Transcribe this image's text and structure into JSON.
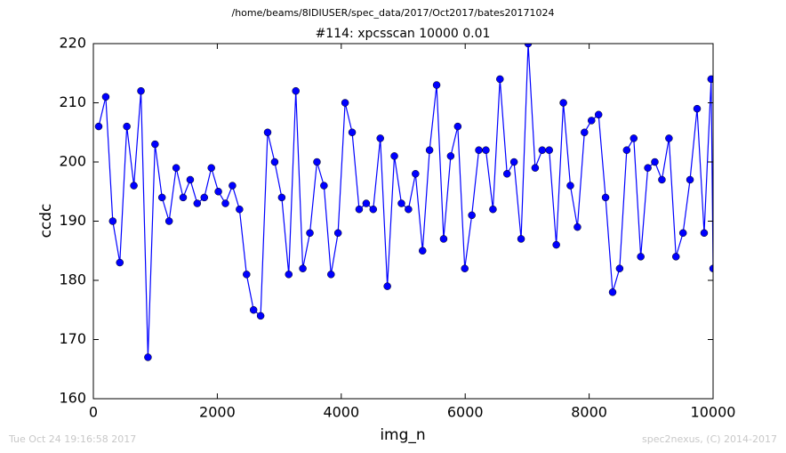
{
  "chart_data": {
    "type": "line",
    "suptitle": "/home/beams/8IDIUSER/spec_data/2017/Oct2017/bates20171024",
    "title": "#114: xpcsscan 10000 0.01",
    "x_label": "img_n",
    "y_label": "ccdc",
    "footer_left": "Tue Oct 24 19:16:58 2017",
    "footer_right": "spec2nexus, (C) 2014-2017",
    "x": [
      86,
      200,
      313,
      427,
      540,
      654,
      768,
      881,
      995,
      1108,
      1222,
      1336,
      1449,
      1563,
      1676,
      1790,
      1904,
      2017,
      2131,
      2244,
      2358,
      2472,
      2585,
      2699,
      2812,
      2926,
      3040,
      3153,
      3267,
      3380,
      3494,
      3608,
      3721,
      3835,
      3948,
      4062,
      4176,
      4289,
      4403,
      4516,
      4630,
      4744,
      4857,
      4971,
      5084,
      5198,
      5312,
      5425,
      5539,
      5652,
      5766,
      5880,
      5993,
      6107,
      6220,
      6334,
      6448,
      6561,
      6675,
      6788,
      6902,
      7016,
      7129,
      7243,
      7356,
      7470,
      7584,
      7697,
      7811,
      7924,
      8038,
      8152,
      8265,
      8379,
      8492,
      8606,
      8720,
      8833,
      8947,
      9060,
      9174,
      9288,
      9401,
      9515,
      9628,
      9742,
      9856,
      9969,
      10000
    ],
    "series": [
      {
        "color": "#0000ff",
        "values": [
          206,
          211,
          190,
          183,
          206,
          196,
          212,
          167,
          203,
          194,
          190,
          199,
          194,
          197,
          193,
          194,
          199,
          195,
          193,
          196,
          192,
          181,
          175,
          174,
          205,
          200,
          194,
          181,
          212,
          182,
          188,
          200,
          196,
          181,
          188,
          210,
          205,
          192,
          193,
          192,
          204,
          179,
          201,
          193,
          192,
          198,
          185,
          202,
          213,
          187,
          201,
          206,
          182,
          191,
          202,
          202,
          192,
          214,
          198,
          200,
          187,
          220,
          199,
          202,
          202,
          186,
          210,
          196,
          189,
          205,
          207,
          208,
          194,
          178,
          182,
          202,
          204,
          184,
          199,
          200,
          197,
          204,
          184,
          188,
          197,
          209,
          188,
          214,
          182
        ]
      }
    ],
    "xlim": [
      0,
      10000
    ],
    "xticks": [
      0,
      2000,
      4000,
      6000,
      8000,
      10000
    ],
    "ylim": [
      160,
      220
    ],
    "yticks": [
      160,
      170,
      180,
      190,
      200,
      210,
      220
    ],
    "grid": false
  }
}
